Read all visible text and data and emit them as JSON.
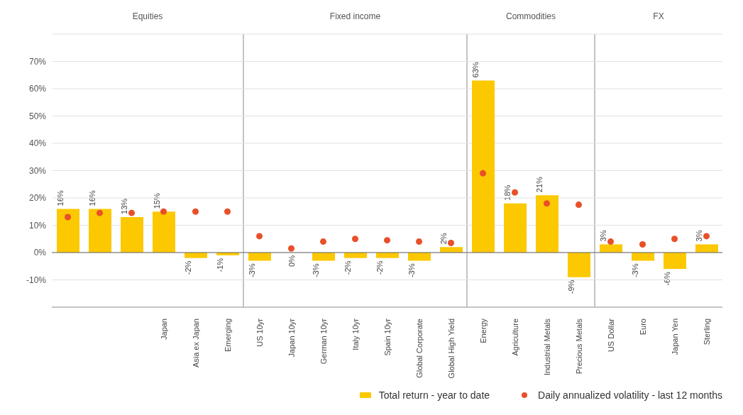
{
  "chart_data": {
    "type": "bar",
    "categories": [
      null,
      null,
      null,
      "Japan",
      "Asia ex Japan",
      "Emerging",
      "US 10yr",
      "Japan 10yr",
      "German 10yr",
      "Italy 10yr",
      "Spain 10yr",
      "Global Corporate",
      "Global High Yield",
      "Energy",
      "Agriculture",
      "Industrial Metals",
      "Precious Metals",
      "US Dollar",
      "Euro",
      "Japan Yen",
      "Sterling"
    ],
    "series": [
      {
        "name": "Total return - year to date",
        "color": "#fcc800",
        "values": [
          16,
          16,
          13,
          15,
          -2,
          -1,
          -3,
          0,
          -3,
          -2,
          -2,
          -3,
          2,
          63,
          18,
          21,
          -9,
          3,
          -3,
          -6,
          3
        ],
        "value_labels": [
          "16%",
          "16%",
          "13%",
          "15%",
          "-2%",
          "-1%",
          "-3%",
          "0%",
          "-3%",
          "-2%",
          "-2%",
          "-3%",
          "2%",
          "63%",
          "18%",
          "21%",
          "-9%",
          "3%",
          "-3%",
          "-6%",
          "3%"
        ]
      },
      {
        "type": "scatter",
        "name": "Daily annualized volatility - last 12 months",
        "color": "#e8502a",
        "values": [
          13,
          14.5,
          14.5,
          15,
          15,
          15,
          6,
          1.5,
          4,
          5,
          4.5,
          4,
          3.5,
          29,
          22,
          18,
          17.5,
          4,
          3,
          5,
          6
        ]
      }
    ],
    "annotations": [
      "Equities",
      "Fixed income",
      "Commodities",
      "FX"
    ],
    "ylim": [
      -20,
      80
    ],
    "yticks": [
      {
        "value": -10,
        "label": "-10%"
      },
      {
        "value": 0,
        "label": "0%"
      },
      {
        "value": 10,
        "label": "10%"
      },
      {
        "value": 20,
        "label": "20%"
      },
      {
        "value": 30,
        "label": "30%"
      },
      {
        "value": 40,
        "label": "40%"
      },
      {
        "value": 50,
        "label": "50%"
      },
      {
        "value": 60,
        "label": "60%"
      },
      {
        "value": 70,
        "label": "70%"
      }
    ],
    "ref_lines": [
      {
        "axis": "y",
        "value": 0,
        "color": "#666666"
      }
    ],
    "grid": "y",
    "legend": "bottom right",
    "marker": "circle"
  }
}
